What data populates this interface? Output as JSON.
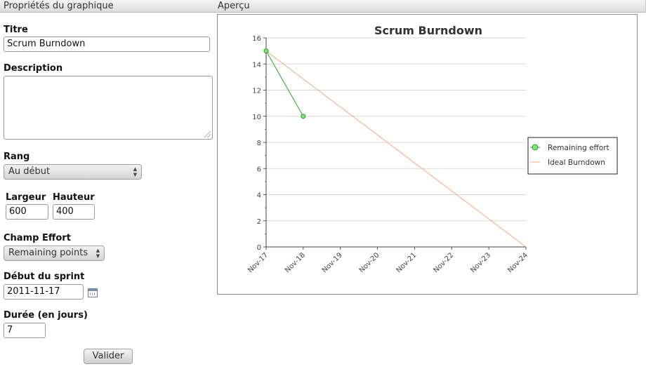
{
  "panels": {
    "properties_title": "Propriétés du graphique",
    "preview_title": "Aperçu"
  },
  "form": {
    "title_label": "Titre",
    "title_value": "Scrum Burndown",
    "description_label": "Description",
    "description_value": "",
    "rank_label": "Rang",
    "rank_value": "Au début",
    "width_label": "Largeur",
    "width_value": "600",
    "height_label": "Hauteur",
    "height_value": "400",
    "effort_label": "Champ Effort",
    "effort_value": "Remaining points",
    "sprint_start_label": "Début du sprint",
    "sprint_start_value": "2011-11-17",
    "duration_label": "Durée (en jours)",
    "duration_value": "7",
    "submit_label": "Valider"
  },
  "chart_data": {
    "type": "line",
    "title": "Scrum Burndown",
    "xlabel": "",
    "ylabel": "",
    "categories": [
      "Nov-17",
      "Nov-18",
      "Nov-19",
      "Nov-20",
      "Nov-21",
      "Nov-22",
      "Nov-23",
      "Nov-24"
    ],
    "ylim": [
      0,
      16
    ],
    "yticks": [
      0,
      2,
      4,
      6,
      8,
      10,
      12,
      14,
      16
    ],
    "grid": true,
    "legend_position": "right",
    "series": [
      {
        "name": "Remaining effort",
        "color": "#2ca02c",
        "marker_fill": "#7de37d",
        "points": [
          [
            0,
            15
          ],
          [
            1,
            10
          ]
        ]
      },
      {
        "name": "Ideal Burndown",
        "color": "#f5a878",
        "points": [
          [
            0,
            15
          ],
          [
            7,
            0
          ]
        ]
      }
    ]
  }
}
